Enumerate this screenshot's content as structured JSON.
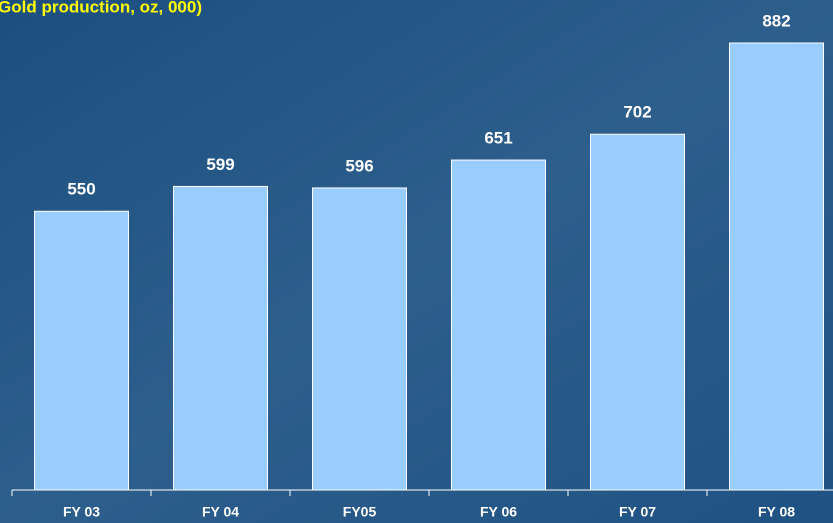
{
  "chart_data": {
    "type": "bar",
    "title": "Gold production, oz, 000)",
    "categories": [
      "FY 03",
      "FY 04",
      "FY05",
      "FY 06",
      "FY 07",
      "FY 08"
    ],
    "values": [
      550,
      599,
      596,
      651,
      702,
      882
    ],
    "color": "#99ccff"
  }
}
